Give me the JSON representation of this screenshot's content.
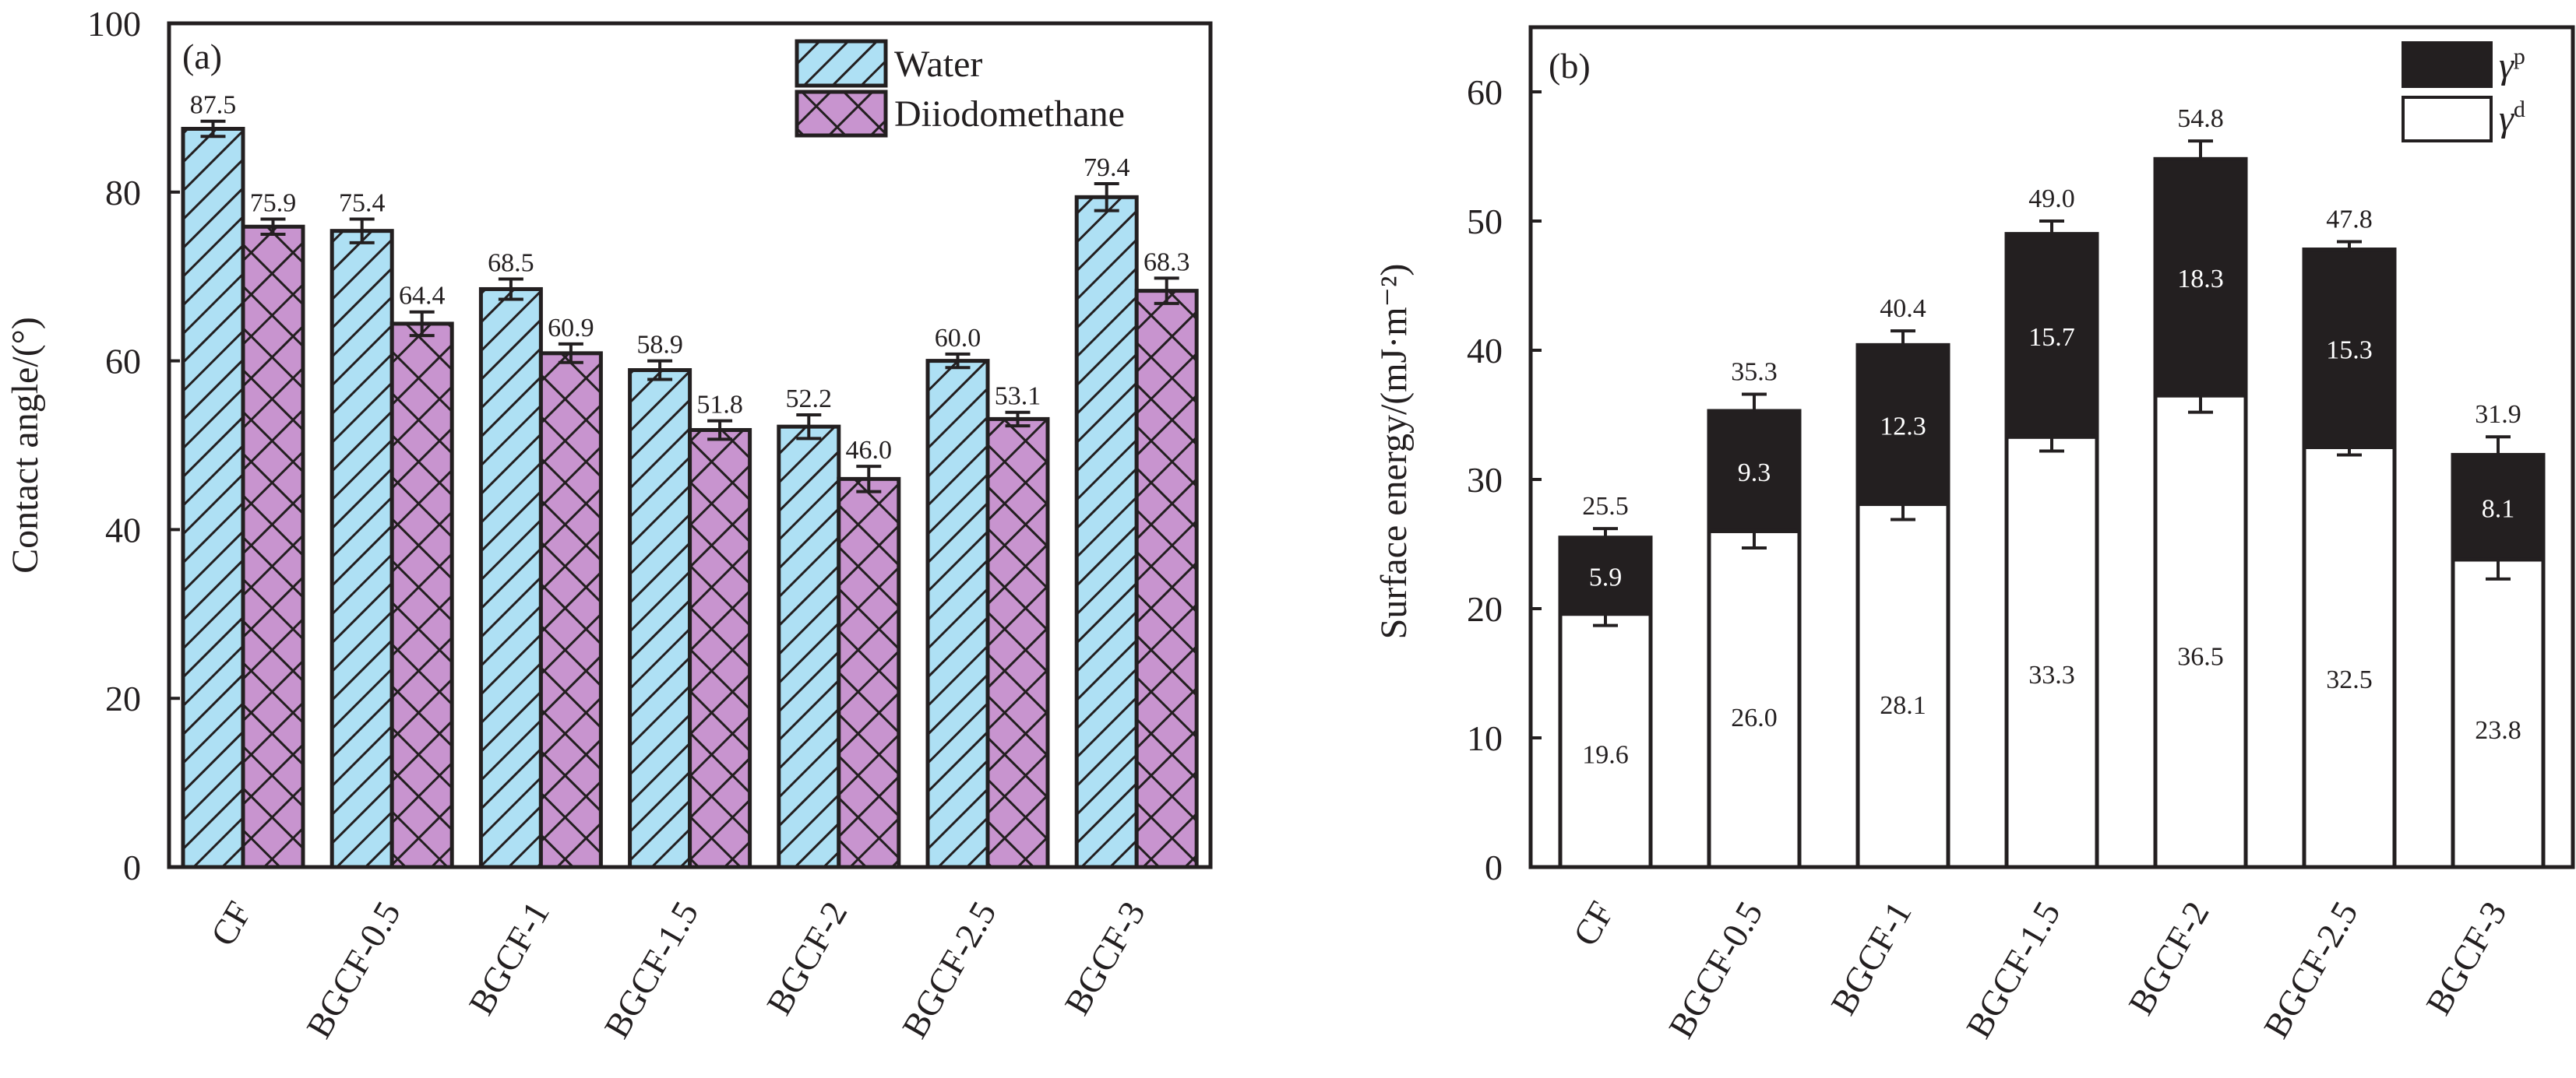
{
  "chart_data": [
    {
      "id": "a",
      "type": "bar",
      "panel_label": "(a)",
      "title": "",
      "xlabel": "",
      "ylabel": "Contact angle/(°)",
      "ylim": [
        0,
        100
      ],
      "yticks": [
        0,
        20,
        40,
        60,
        80,
        100
      ],
      "grid": false,
      "legend_position": "top-right",
      "categories": [
        "CF",
        "BGCF-0.5",
        "BGCF-1",
        "BGCF-1.5",
        "BGCF-2",
        "BGCF-2.5",
        "BGCF-3"
      ],
      "series": [
        {
          "name": "Water",
          "color": "#aee0f4",
          "pattern": "diagonal-hatch",
          "values": [
            87.5,
            75.4,
            68.5,
            58.9,
            52.2,
            60.0,
            79.4
          ],
          "labels": [
            "87.5",
            "75.4",
            "68.5",
            "58.9",
            "52.2",
            "60.0",
            "79.4"
          ],
          "errors": [
            0.9,
            1.4,
            1.2,
            1.1,
            1.4,
            0.8,
            1.6
          ]
        },
        {
          "name": "Diiodomethane",
          "color": "#c894cf",
          "pattern": "cross-hatch",
          "values": [
            75.9,
            64.4,
            60.9,
            51.8,
            46.0,
            53.1,
            68.3
          ],
          "labels": [
            "75.9",
            "64.4",
            "60.9",
            "51.8",
            "46.0",
            "53.1",
            "68.3"
          ],
          "errors": [
            0.9,
            1.4,
            1.1,
            1.1,
            1.5,
            0.8,
            1.5
          ]
        }
      ]
    },
    {
      "id": "b",
      "type": "bar",
      "stacked": true,
      "panel_label": "(b)",
      "title": "",
      "xlabel": "",
      "ylabel": "Surface energy/(mJ·m⁻²)",
      "ylim": [
        0,
        65
      ],
      "yticks": [
        0,
        10,
        20,
        30,
        40,
        50,
        60
      ],
      "grid": false,
      "legend_position": "top-right",
      "categories": [
        "CF",
        "BGCF-0.5",
        "BGCF-1",
        "BGCF-1.5",
        "BGCF-2",
        "BGCF-2.5",
        "BGCF-3"
      ],
      "series": [
        {
          "name": "γd",
          "legend_base": "γ",
          "legend_sup": "d",
          "color": "#ffffff",
          "values": [
            19.6,
            26.0,
            28.1,
            33.3,
            36.5,
            32.5,
            23.8
          ],
          "labels": [
            "19.6",
            "26.0",
            "28.1",
            "33.3",
            "36.5",
            "32.5",
            "23.8"
          ],
          "errors": [
            0.9,
            1.3,
            1.2,
            1.1,
            1.3,
            0.6,
            1.5
          ]
        },
        {
          "name": "γp",
          "legend_base": "γ",
          "legend_sup": "p",
          "color": "#231f20",
          "values": [
            5.9,
            9.3,
            12.3,
            15.7,
            18.3,
            15.3,
            8.1
          ],
          "labels": [
            "5.9",
            "9.3",
            "12.3",
            "15.7",
            "18.3",
            "15.3",
            "8.1"
          ],
          "errors": [
            0.7,
            1.3,
            1.1,
            1.0,
            1.4,
            0.6,
            1.4
          ]
        }
      ],
      "totals": [
        25.5,
        35.3,
        40.4,
        49.0,
        54.8,
        47.8,
        31.9
      ],
      "total_labels": [
        "25.5",
        "35.3",
        "40.4",
        "49.0",
        "54.8",
        "47.8",
        "31.9"
      ]
    }
  ]
}
